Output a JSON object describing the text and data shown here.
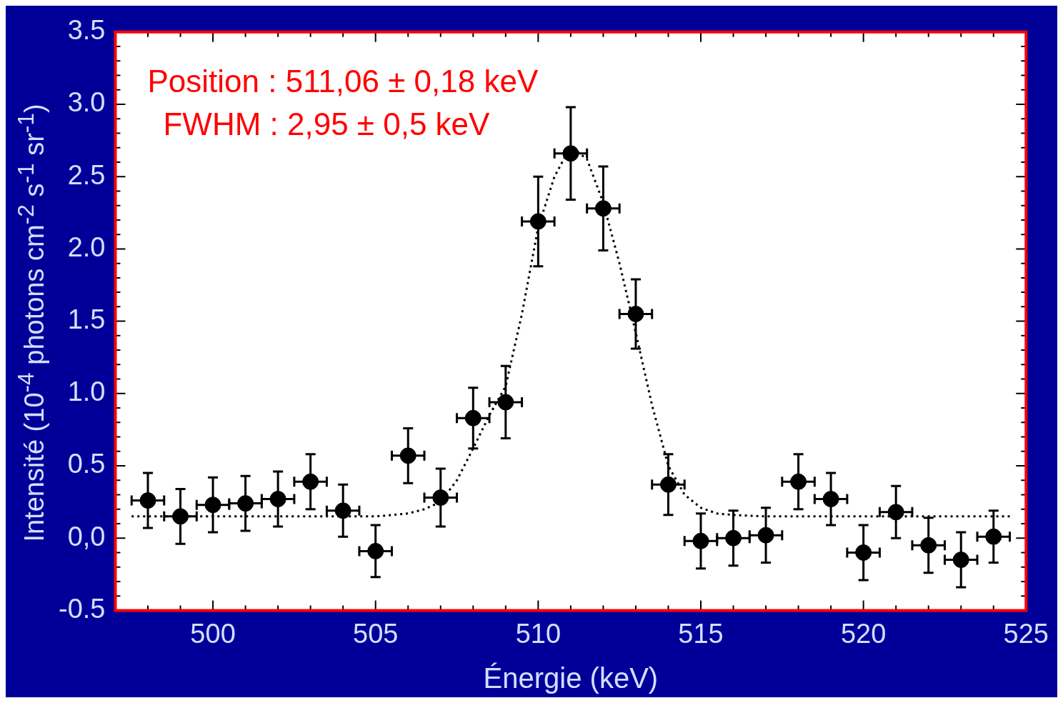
{
  "chart_data": {
    "type": "scatter",
    "xlabel": "Énergie (keV)",
    "ylabel": "Intensité (10$^{-4}$ photons cm$^{-2}$ s$^{-1}$ sr$^{-1}$)",
    "annotations": [
      "Position : 511,06 ± 0,18 keV",
      "FWHM : 2,95 ± 0,5 keV"
    ],
    "xlim": [
      497,
      525
    ],
    "ylim": [
      -0.5,
      3.5
    ],
    "xticks": [
      {
        "value": 498,
        "label": null
      },
      {
        "value": 499,
        "label": null
      },
      500,
      {
        "value": 501,
        "label": null
      },
      {
        "value": 502,
        "label": null
      },
      {
        "value": 503,
        "label": null
      },
      {
        "value": 504,
        "label": null
      },
      505,
      {
        "value": 506,
        "label": null
      },
      {
        "value": 507,
        "label": null
      },
      {
        "value": 508,
        "label": null
      },
      {
        "value": 509,
        "label": null
      },
      510,
      {
        "value": 511,
        "label": null
      },
      {
        "value": 512,
        "label": null
      },
      {
        "value": 513,
        "label": null
      },
      {
        "value": 514,
        "label": null
      },
      515,
      {
        "value": 516,
        "label": null
      },
      {
        "value": 517,
        "label": null
      },
      {
        "value": 518,
        "label": null
      },
      {
        "value": 519,
        "label": null
      },
      520,
      {
        "value": 521,
        "label": null
      },
      {
        "value": 522,
        "label": null
      },
      {
        "value": 523,
        "label": null
      },
      {
        "value": 524,
        "label": null
      },
      525
    ],
    "yticks": [
      -0.5,
      {
        "value": -0.4,
        "label": null
      },
      {
        "value": -0.3,
        "label": null
      },
      {
        "value": -0.2,
        "label": null
      },
      {
        "value": -0.1,
        "label": null
      },
      {
        "value": 0,
        "label": "0,0"
      },
      {
        "value": 0.1,
        "label": null
      },
      {
        "value": 0.2,
        "label": null
      },
      {
        "value": 0.3,
        "label": null
      },
      {
        "value": 0.4,
        "label": null
      },
      0.5,
      {
        "value": 0.6,
        "label": null
      },
      {
        "value": 0.7,
        "label": null
      },
      {
        "value": 0.8,
        "label": null
      },
      {
        "value": 0.9,
        "label": null
      },
      {
        "value": 1,
        "label": "1.0"
      },
      {
        "value": 1.1,
        "label": null
      },
      {
        "value": 1.2,
        "label": null
      },
      {
        "value": 1.3,
        "label": null
      },
      {
        "value": 1.4,
        "label": null
      },
      1.5,
      {
        "value": 1.6,
        "label": null
      },
      {
        "value": 1.7,
        "label": null
      },
      {
        "value": 1.8,
        "label": null
      },
      {
        "value": 1.9,
        "label": null
      },
      {
        "value": 2,
        "label": "2.0"
      },
      {
        "value": 2.1,
        "label": null
      },
      {
        "value": 2.2,
        "label": null
      },
      {
        "value": 2.3,
        "label": null
      },
      {
        "value": 2.4,
        "label": null
      },
      2.5,
      {
        "value": 2.6,
        "label": null
      },
      {
        "value": 2.7,
        "label": null
      },
      {
        "value": 2.8,
        "label": null
      },
      {
        "value": 2.9,
        "label": null
      },
      {
        "value": 3,
        "label": "3.0"
      },
      {
        "value": 3.1,
        "label": null
      },
      {
        "value": 3.2,
        "label": null
      },
      {
        "value": 3.3,
        "label": null
      },
      {
        "value": 3.4,
        "label": null
      },
      3.5
    ],
    "series": [
      {
        "type": "scatter",
        "color": "#000000",
        "marker": "circle",
        "x": [
          498,
          499,
          500,
          501,
          502,
          503,
          504,
          505,
          506,
          507,
          508,
          509,
          510,
          511,
          512,
          513,
          514,
          515,
          516,
          517,
          518,
          519,
          520,
          521,
          522,
          523,
          524
        ],
        "values": [
          0.26,
          0.15,
          0.23,
          0.24,
          0.27,
          0.39,
          0.19,
          -0.09,
          0.57,
          0.28,
          0.83,
          0.94,
          2.19,
          2.66,
          2.28,
          1.55,
          0.37,
          -0.02,
          0.0,
          0.02,
          0.39,
          0.27,
          -0.1,
          0.18,
          -0.05,
          -0.15,
          0.01
        ],
        "errors": [
          0.19,
          0.19,
          0.19,
          0.19,
          0.19,
          0.19,
          0.18,
          0.18,
          0.19,
          0.2,
          0.21,
          0.25,
          0.31,
          0.32,
          0.29,
          0.24,
          0.21,
          0.19,
          0.19,
          0.19,
          0.19,
          0.18,
          0.19,
          0.18,
          0.19,
          0.19,
          0.18
        ],
        "xerrors": [
          0.5,
          0.5,
          0.5,
          0.5,
          0.5,
          0.5,
          0.5,
          0.5,
          0.5,
          0.5,
          0.5,
          0.5,
          0.5,
          0.5,
          0.5,
          0.5,
          0.5,
          0.5,
          0.5,
          0.5,
          0.5,
          0.5,
          0.5,
          0.5,
          0.5,
          0.5,
          0.5
        ]
      },
      {
        "type": "line",
        "color": "#000000",
        "marker": "none",
        "line_style": "dotted",
        "x": [
          497.5,
          504,
          505,
          506,
          506.5,
          507,
          507.5,
          508,
          508.5,
          509,
          509.5,
          510,
          510.5,
          511,
          511.5,
          512,
          512.5,
          513,
          513.5,
          514,
          514.5,
          515,
          515.5,
          516,
          517,
          524.5
        ],
        "values": [
          0.15,
          0.15,
          0.15,
          0.17,
          0.2,
          0.25,
          0.4,
          0.62,
          0.85,
          1.05,
          1.55,
          2.15,
          2.5,
          2.71,
          2.62,
          2.32,
          1.9,
          1.42,
          0.92,
          0.5,
          0.3,
          0.21,
          0.17,
          0.16,
          0.15,
          0.15
        ]
      }
    ]
  }
}
